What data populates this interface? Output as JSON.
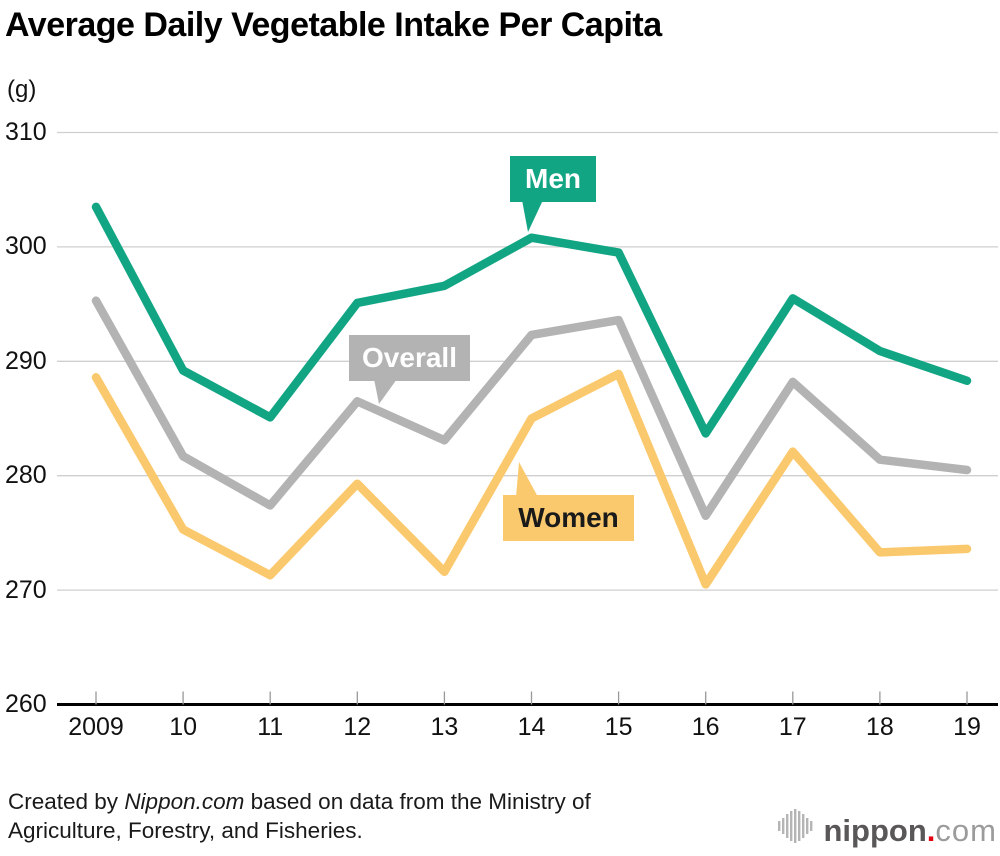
{
  "title": "Average Daily Vegetable Intake Per Capita",
  "unit_label": "(g)",
  "chart_data": {
    "type": "line",
    "x": [
      2009,
      2010,
      2011,
      2012,
      2013,
      2014,
      2015,
      2016,
      2017,
      2018,
      2019
    ],
    "x_tick_labels": [
      "2009",
      "10",
      "11",
      "12",
      "13",
      "14",
      "15",
      "16",
      "17",
      "18",
      "19"
    ],
    "y_ticks": [
      310,
      300,
      290,
      280,
      270,
      260
    ],
    "ylim": [
      260,
      310
    ],
    "ylabel": "(g)",
    "grid": "horizontal",
    "legend_position": "inline-callouts",
    "series": [
      {
        "name": "Men",
        "color": "#12a584",
        "label_text_color": "#ffffff",
        "values": [
          303.5,
          289.2,
          285.1,
          295.1,
          296.6,
          300.8,
          299.5,
          283.7,
          295.5,
          290.9,
          288.3
        ]
      },
      {
        "name": "Overall",
        "color": "#b3b3b3",
        "label_text_color": "#ffffff",
        "values": [
          295.3,
          281.7,
          277.4,
          286.5,
          283.1,
          292.3,
          293.6,
          276.5,
          288.2,
          281.4,
          280.5
        ]
      },
      {
        "name": "Women",
        "color": "#fbc96d",
        "label_text_color": "#1a1a1a",
        "values": [
          288.6,
          275.3,
          271.3,
          279.3,
          271.6,
          285.0,
          288.9,
          270.5,
          282.1,
          273.3,
          273.6
        ]
      }
    ]
  },
  "footer": {
    "line1_prefix": "Created by ",
    "line1_source": "Nippon.com",
    "line1_suffix": " based on data from the Ministry of",
    "line2": "Agriculture, Forestry, and Fisheries."
  },
  "logo": {
    "name_bold": "nippon",
    "dot": ".",
    "name_light": "com",
    "dot_color": "#e60012",
    "icon": "sound-wave-icon"
  },
  "colors": {
    "gridline": "#cfcfcf",
    "axis": "#000000",
    "tick": "#999999",
    "text": "#111111"
  }
}
